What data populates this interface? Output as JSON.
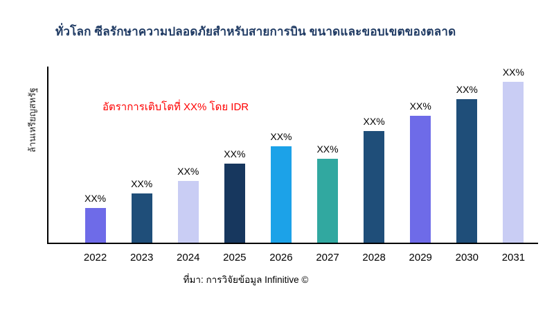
{
  "chart_data": {
    "type": "bar",
    "title": "ทั่วโลก ซีลรักษาความปลอดภัยสำหรับสายการบิน ขนาดและขอบเขตของตลาด",
    "ylabel": "ล้านเหรียญสหรัฐ",
    "xlabel": "",
    "annotation": "อัตราการเติบโตที่ XX% โดย IDR",
    "source": "ที่มา: การวิจัยข้อมูล Infinitive ©",
    "categories": [
      "2022",
      "2023",
      "2024",
      "2025",
      "2026",
      "2027",
      "2028",
      "2029",
      "2030",
      "2031"
    ],
    "values": [
      50,
      70,
      88,
      113,
      138,
      120,
      160,
      182,
      205,
      230
    ],
    "bar_labels": [
      "XX%",
      "XX%",
      "XX%",
      "XX%",
      "XX%",
      "XX%",
      "XX%",
      "XX%",
      "XX%",
      "XX%"
    ],
    "bar_colors": [
      "#6e6be8",
      "#1f4e79",
      "#c9cdf4",
      "#17375e",
      "#1ca2e8",
      "#31a8a0",
      "#1f4e79",
      "#6e6be8",
      "#1f4e79",
      "#c9cdf4"
    ],
    "ylim": [
      0,
      250
    ],
    "grid": false,
    "legend": false
  },
  "colors": {
    "title": "#1f3a63",
    "annotation": "#fe0000",
    "axis": "#000000",
    "background": "#ffffff"
  }
}
